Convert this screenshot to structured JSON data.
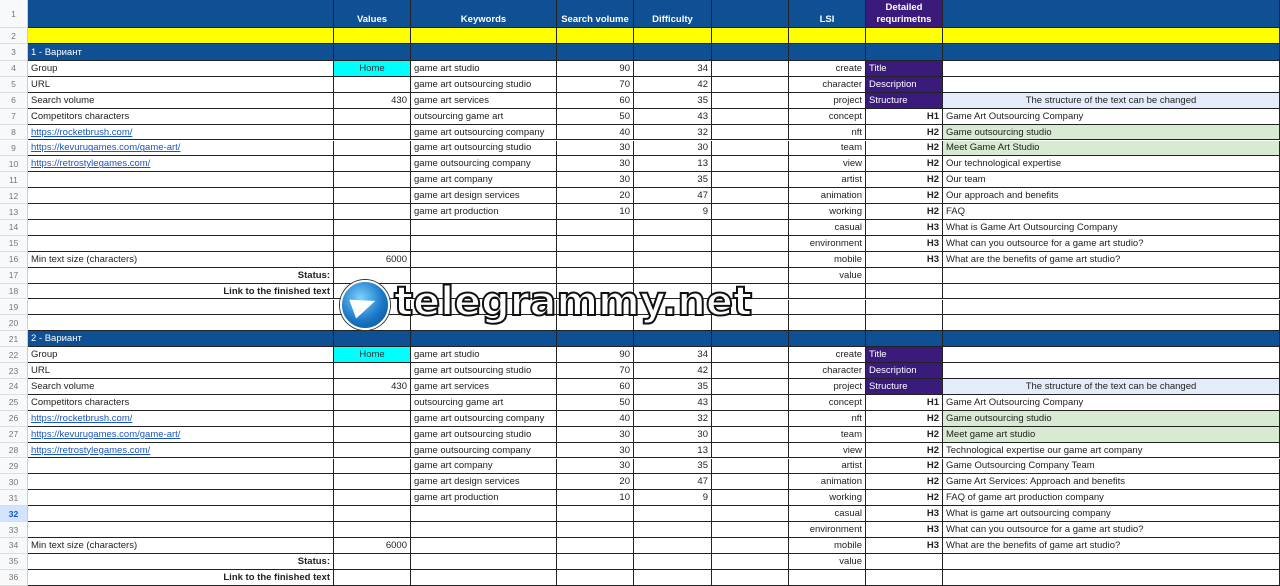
{
  "columns_header": {
    "values": "Values",
    "keywords": "Keywords",
    "search_volume": "Search volume",
    "difficulty": "Difficulty",
    "lsi": "LSI",
    "detailed": "Detailed requrimetns"
  },
  "selected_row": 32,
  "colors": {
    "header_blue": "#0f4f93",
    "yellow": "#ffff00",
    "purple": "#3a1b7c",
    "cyan": "#00ffff",
    "green": "#d9ead3",
    "light_blue": "#e3ecf8"
  },
  "rows": [
    {
      "n": "1",
      "cells": [
        "",
        "Values",
        "Keywords",
        "Search volume",
        "Difficulty",
        "",
        "LSI",
        "Detailed requrimetns",
        ""
      ]
    },
    {
      "n": "2",
      "cells": [
        "",
        "",
        "",
        "",
        "",
        "",
        "",
        "",
        ""
      ]
    },
    {
      "n": "3",
      "cells": [
        "1 - Вариант",
        "",
        "",
        "",
        "",
        "",
        "",
        "",
        ""
      ]
    },
    {
      "n": "4",
      "cells": [
        "Group",
        "Home",
        "game art studio",
        "90",
        "34",
        "",
        "create",
        "Title",
        ""
      ]
    },
    {
      "n": "5",
      "cells": [
        "URL",
        "",
        "game art outsourcing studio",
        "70",
        "42",
        "",
        "character",
        "Description",
        ""
      ]
    },
    {
      "n": "6",
      "cells": [
        "Search volume",
        "430",
        "game art services",
        "60",
        "35",
        "",
        "project",
        "Structure",
        "The structure of the text can be changed"
      ]
    },
    {
      "n": "7",
      "cells": [
        "Competitors characters",
        "",
        "outsourcing game art",
        "50",
        "43",
        "",
        "concept",
        "H1",
        "Game Art Outsourcing Company"
      ]
    },
    {
      "n": "8",
      "cells": [
        "https://rocketbrush.com/",
        "",
        "game art outsourcing company",
        "40",
        "32",
        "",
        "nft",
        "H2",
        "Game outsourcing studio"
      ]
    },
    {
      "n": "9",
      "cells": [
        "https://kevurugames.com/game-art/",
        "",
        "game art outsourcing studio",
        "30",
        "30",
        "",
        "team",
        "H2",
        "Meet Game Art Studio"
      ]
    },
    {
      "n": "10",
      "cells": [
        "https://retrostylegames.com/",
        "",
        "game outsourcing company",
        "30",
        "13",
        "",
        "view",
        "H2",
        "Our technological expertise"
      ]
    },
    {
      "n": "11",
      "cells": [
        "",
        "",
        "game art company",
        "30",
        "35",
        "",
        "artist",
        "H2",
        "Our team"
      ]
    },
    {
      "n": "12",
      "cells": [
        "",
        "",
        "game art design services",
        "20",
        "47",
        "",
        "animation",
        "H2",
        "Our approach and benefits"
      ]
    },
    {
      "n": "13",
      "cells": [
        "",
        "",
        "game art production",
        "10",
        "9",
        "",
        "working",
        "H2",
        "FAQ"
      ]
    },
    {
      "n": "14",
      "cells": [
        "",
        "",
        "",
        "",
        "",
        "",
        "casual",
        "H3",
        "What is Game Art Outsourcing Company"
      ]
    },
    {
      "n": "15",
      "cells": [
        "",
        "",
        "",
        "",
        "",
        "",
        "environment",
        "H3",
        "What can you outsource for a game art studio?"
      ]
    },
    {
      "n": "16",
      "cells": [
        "Min text size (characters)",
        "6000",
        "",
        "",
        "",
        "",
        "mobile",
        "H3",
        "What are the benefits of game art studio?"
      ]
    },
    {
      "n": "17",
      "cells": [
        "Status:",
        "",
        "",
        "",
        "",
        "",
        "value",
        "",
        ""
      ]
    },
    {
      "n": "18",
      "cells": [
        "Link to the finished text",
        "",
        "",
        "",
        "",
        "",
        "",
        "",
        ""
      ]
    },
    {
      "n": "19",
      "cells": [
        "",
        "",
        "",
        "",
        "",
        "",
        "",
        "",
        ""
      ]
    },
    {
      "n": "20",
      "cells": [
        "",
        "",
        "",
        "",
        "",
        "",
        "",
        "",
        ""
      ]
    },
    {
      "n": "21",
      "cells": [
        "2 - Вариант",
        "",
        "",
        "",
        "",
        "",
        "",
        "",
        ""
      ]
    },
    {
      "n": "22",
      "cells": [
        "Group",
        "Home",
        "game art studio",
        "90",
        "34",
        "",
        "create",
        "Title",
        ""
      ]
    },
    {
      "n": "23",
      "cells": [
        "URL",
        "",
        "game art outsourcing studio",
        "70",
        "42",
        "",
        "character",
        "Description",
        ""
      ]
    },
    {
      "n": "24",
      "cells": [
        "Search volume",
        "430",
        "game art services",
        "60",
        "35",
        "",
        "project",
        "Structure",
        "The structure of the text can be changed"
      ]
    },
    {
      "n": "25",
      "cells": [
        "Competitors characters",
        "",
        "outsourcing game art",
        "50",
        "43",
        "",
        "concept",
        "H1",
        "Game Art Outsourcing Company"
      ]
    },
    {
      "n": "26",
      "cells": [
        "https://rocketbrush.com/",
        "",
        "game art outsourcing company",
        "40",
        "32",
        "",
        "nft",
        "H2",
        "Game outsourcing studio"
      ]
    },
    {
      "n": "27",
      "cells": [
        "https://kevurugames.com/game-art/",
        "",
        "game art outsourcing studio",
        "30",
        "30",
        "",
        "team",
        "H2",
        "Meet game art studio"
      ]
    },
    {
      "n": "28",
      "cells": [
        "https://retrostylegames.com/",
        "",
        "game outsourcing company",
        "30",
        "13",
        "",
        "view",
        "H2",
        "Technological expertise our game art company"
      ]
    },
    {
      "n": "29",
      "cells": [
        "",
        "",
        "game art company",
        "30",
        "35",
        "",
        "artist",
        "H2",
        "Game Outsourcing Company Team"
      ]
    },
    {
      "n": "30",
      "cells": [
        "",
        "",
        "game art design services",
        "20",
        "47",
        "",
        "animation",
        "H2",
        "Game Art Services: Approach and benefits"
      ]
    },
    {
      "n": "31",
      "cells": [
        "",
        "",
        "game art production",
        "10",
        "9",
        "",
        "working",
        "H2",
        "FAQ of game art production company"
      ]
    },
    {
      "n": "32",
      "cells": [
        "",
        "",
        "",
        "",
        "",
        "",
        "casual",
        "H3",
        "What is game art outsourcing company"
      ]
    },
    {
      "n": "33",
      "cells": [
        "",
        "",
        "",
        "",
        "",
        "",
        "environment",
        "H3",
        "What can you outsource for a game art studio?"
      ]
    },
    {
      "n": "34",
      "cells": [
        "Min text size (characters)",
        "6000",
        "",
        "",
        "",
        "",
        "mobile",
        "H3",
        "What are the benefits of game art studio?"
      ]
    },
    {
      "n": "35",
      "cells": [
        "Status:",
        "",
        "",
        "",
        "",
        "",
        "value",
        "",
        ""
      ]
    },
    {
      "n": "36",
      "cells": [
        "Link to the finished text",
        "",
        "",
        "",
        "",
        "",
        "",
        "",
        ""
      ]
    }
  ],
  "watermark": "telegrammy.net"
}
